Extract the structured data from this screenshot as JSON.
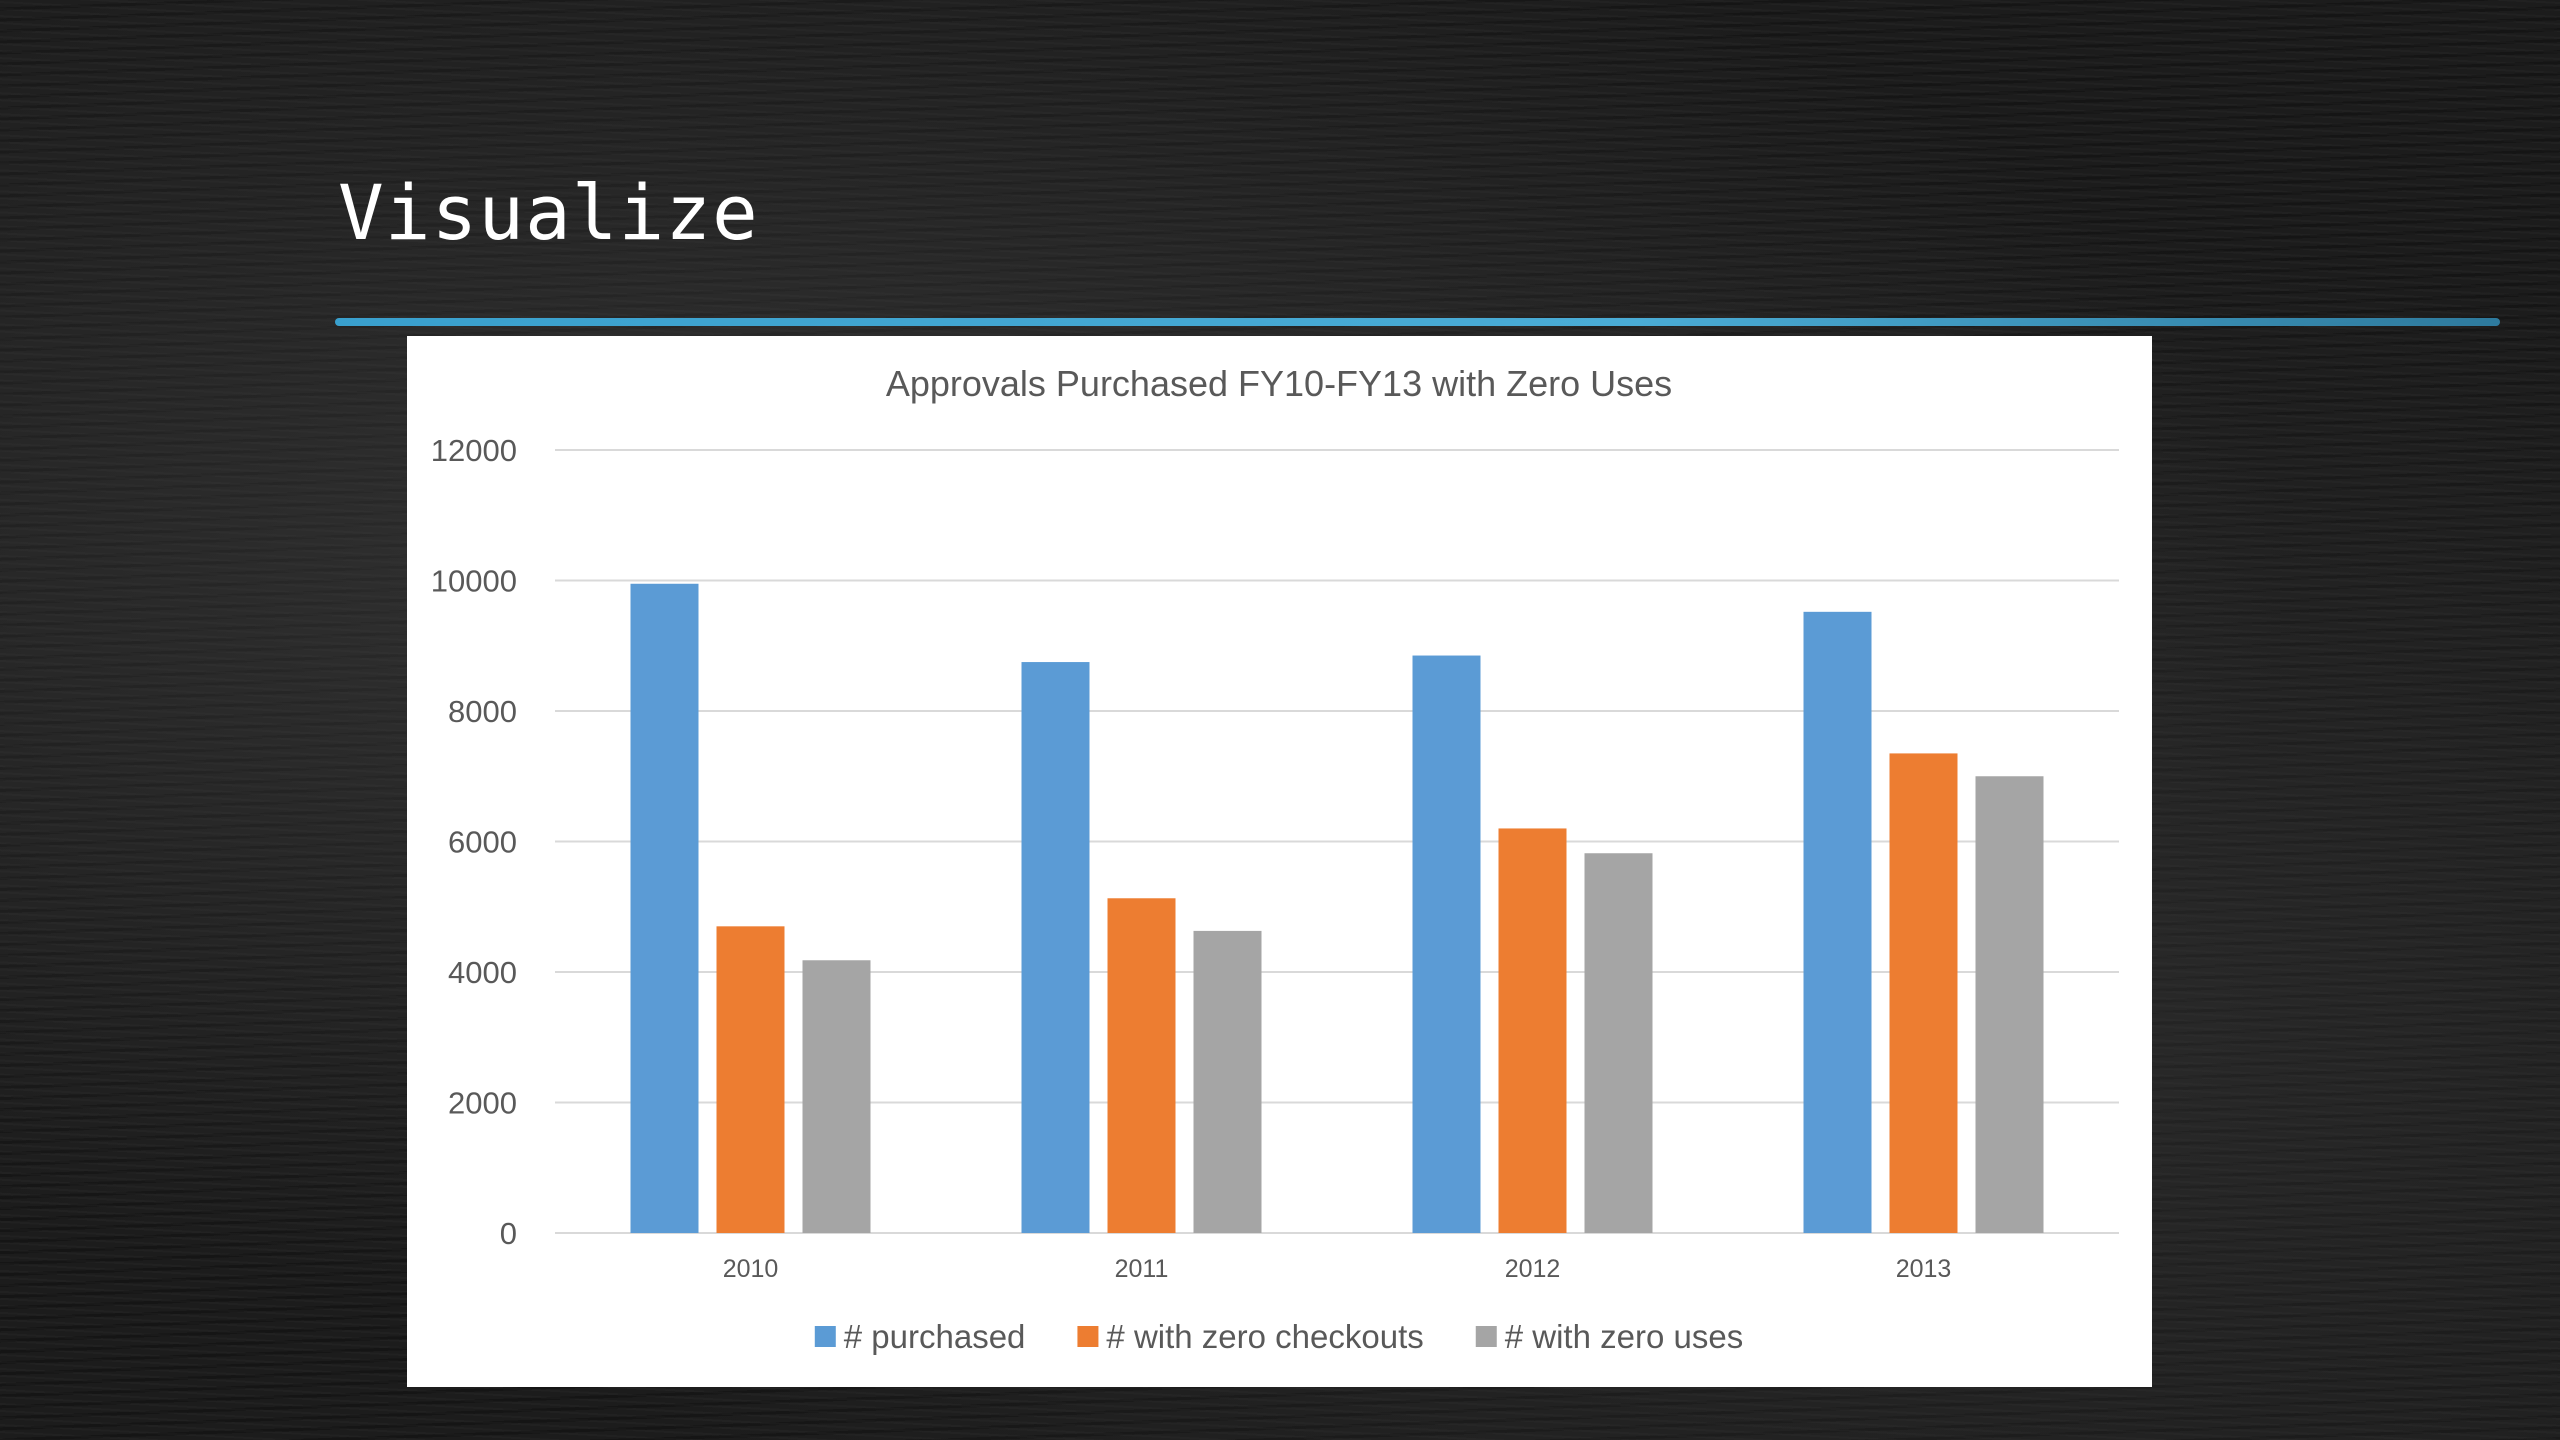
{
  "slide": {
    "title": "Visualize"
  },
  "colors": {
    "purchased": "#5b9bd5",
    "zero_checkouts": "#ed7d31",
    "zero_uses": "#a5a5a5",
    "gridline": "#d9d9d9",
    "text": "#595959",
    "accent_rule": "#3aa6d6"
  },
  "chart_data": {
    "type": "bar",
    "title": "Approvals Purchased FY10-FY13 with Zero Uses",
    "xlabel": "",
    "ylabel": "",
    "categories": [
      "2010",
      "2011",
      "2012",
      "2013"
    ],
    "series": [
      {
        "name": "# purchased",
        "color": "#5b9bd5",
        "values": [
          9950,
          8750,
          8850,
          9520
        ]
      },
      {
        "name": "# with zero checkouts",
        "color": "#ed7d31",
        "values": [
          4700,
          5130,
          6200,
          7350
        ]
      },
      {
        "name": "# with zero uses",
        "color": "#a5a5a5",
        "values": [
          4180,
          4630,
          5820,
          7000
        ]
      }
    ],
    "ylim": [
      0,
      12000
    ],
    "yticks": [
      0,
      2000,
      4000,
      6000,
      8000,
      10000,
      12000
    ],
    "grid": true,
    "legend": "bottom"
  }
}
